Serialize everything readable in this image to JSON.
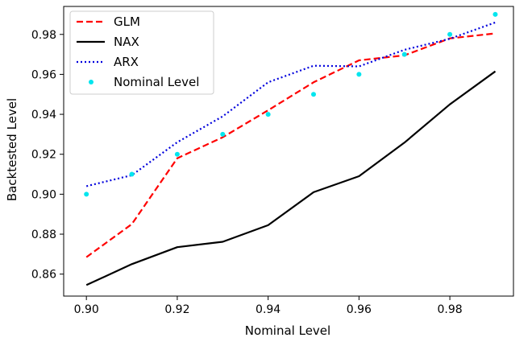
{
  "chart_data": {
    "type": "line",
    "xlabel": "Nominal Level",
    "ylabel": "Backtested Level",
    "xlim": [
      0.895,
      0.994
    ],
    "ylim": [
      0.849,
      0.994
    ],
    "x_ticks": [
      "0.90",
      "0.92",
      "0.94",
      "0.96",
      "0.98"
    ],
    "x_tick_values": [
      0.9,
      0.92,
      0.94,
      0.96,
      0.98
    ],
    "y_ticks": [
      "0.86",
      "0.88",
      "0.90",
      "0.92",
      "0.94",
      "0.96",
      "0.98"
    ],
    "y_tick_values": [
      0.86,
      0.88,
      0.9,
      0.92,
      0.94,
      0.96,
      0.98
    ],
    "legend_placement": "top-left",
    "grid": false,
    "x": [
      0.9,
      0.91,
      0.92,
      0.93,
      0.94,
      0.95,
      0.96,
      0.97,
      0.98,
      0.99
    ],
    "series": [
      {
        "name": "GLM",
        "style": "dashed",
        "color": "#ff0000",
        "values": [
          0.8685,
          0.885,
          0.918,
          0.9285,
          0.942,
          0.956,
          0.967,
          0.9695,
          0.978,
          0.9805
        ]
      },
      {
        "name": "NAX",
        "style": "solid",
        "color": "#000000",
        "values": [
          0.8545,
          0.865,
          0.8735,
          0.8762,
          0.8845,
          0.901,
          0.909,
          0.9258,
          0.945,
          0.9615
        ]
      },
      {
        "name": "ARX",
        "style": "dotted",
        "color": "#0000dd",
        "values": [
          0.904,
          0.9095,
          0.926,
          0.939,
          0.956,
          0.9643,
          0.964,
          0.9723,
          0.9778,
          0.986
        ]
      },
      {
        "name": "Nominal Level",
        "style": "markers",
        "color": "#00e5ee",
        "values": [
          0.9,
          0.91,
          0.92,
          0.93,
          0.94,
          0.95,
          0.96,
          0.97,
          0.98,
          0.99
        ]
      }
    ]
  }
}
